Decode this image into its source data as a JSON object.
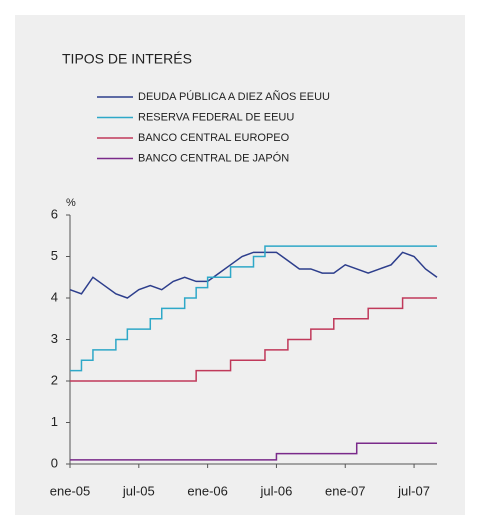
{
  "chart_data": {
    "type": "line",
    "title": "TIPOS DE INTERÉS",
    "y_label": "%",
    "x": [
      "2005-01",
      "2005-02",
      "2005-03",
      "2005-04",
      "2005-05",
      "2005-06",
      "2005-07",
      "2005-08",
      "2005-09",
      "2005-10",
      "2005-11",
      "2005-12",
      "2006-01",
      "2006-02",
      "2006-03",
      "2006-04",
      "2006-05",
      "2006-06",
      "2006-07",
      "2006-08",
      "2006-09",
      "2006-10",
      "2006-11",
      "2006-12",
      "2007-01",
      "2007-02",
      "2007-03",
      "2007-04",
      "2007-05",
      "2007-06",
      "2007-07",
      "2007-08",
      "2007-09"
    ],
    "xlim": [
      "2005-01",
      "2007-09"
    ],
    "xticks": [
      {
        "value": "2005-01",
        "label": "ene-05"
      },
      {
        "value": "2005-07",
        "label": "jul-05"
      },
      {
        "value": "2006-01",
        "label": "ene-06"
      },
      {
        "value": "2006-07",
        "label": "jul-06"
      },
      {
        "value": "2007-01",
        "label": "ene-07"
      },
      {
        "value": "2007-07",
        "label": "jul-07"
      }
    ],
    "ylim": [
      0,
      6
    ],
    "yticks": [
      0,
      1,
      2,
      3,
      4,
      5,
      6
    ],
    "series": [
      {
        "name": "DEUDA PÚBLICA A DIEZ AÑOS EEUU",
        "color": "#2d3e8c",
        "step": false,
        "values": [
          4.2,
          4.1,
          4.5,
          4.3,
          4.1,
          4.0,
          4.2,
          4.3,
          4.2,
          4.4,
          4.5,
          4.4,
          4.4,
          4.6,
          4.8,
          5.0,
          5.1,
          5.1,
          5.1,
          4.9,
          4.7,
          4.7,
          4.6,
          4.6,
          4.8,
          4.7,
          4.6,
          4.7,
          4.8,
          5.1,
          5.0,
          4.7,
          4.5
        ]
      },
      {
        "name": "RESERVA FEDERAL DE EEUU",
        "color": "#2ea8c8",
        "step": true,
        "values": [
          2.25,
          2.5,
          2.75,
          2.75,
          3.0,
          3.25,
          3.25,
          3.5,
          3.75,
          3.75,
          4.0,
          4.25,
          4.5,
          4.5,
          4.75,
          4.75,
          5.0,
          5.25,
          5.25,
          5.25,
          5.25,
          5.25,
          5.25,
          5.25,
          5.25,
          5.25,
          5.25,
          5.25,
          5.25,
          5.25,
          5.25,
          5.25,
          5.25
        ]
      },
      {
        "name": "BANCO CENTRAL EUROPEO",
        "color": "#c0395a",
        "step": true,
        "values": [
          2.0,
          2.0,
          2.0,
          2.0,
          2.0,
          2.0,
          2.0,
          2.0,
          2.0,
          2.0,
          2.0,
          2.25,
          2.25,
          2.25,
          2.5,
          2.5,
          2.5,
          2.75,
          2.75,
          3.0,
          3.0,
          3.25,
          3.25,
          3.5,
          3.5,
          3.5,
          3.75,
          3.75,
          3.75,
          4.0,
          4.0,
          4.0,
          4.0
        ]
      },
      {
        "name": "BANCO CENTRAL DE JAPÓN",
        "color": "#7a2a8a",
        "step": true,
        "values": [
          0.1,
          0.1,
          0.1,
          0.1,
          0.1,
          0.1,
          0.1,
          0.1,
          0.1,
          0.1,
          0.1,
          0.1,
          0.1,
          0.1,
          0.1,
          0.1,
          0.1,
          0.1,
          0.25,
          0.25,
          0.25,
          0.25,
          0.25,
          0.25,
          0.25,
          0.5,
          0.5,
          0.5,
          0.5,
          0.5,
          0.5,
          0.5,
          0.5
        ]
      }
    ]
  }
}
